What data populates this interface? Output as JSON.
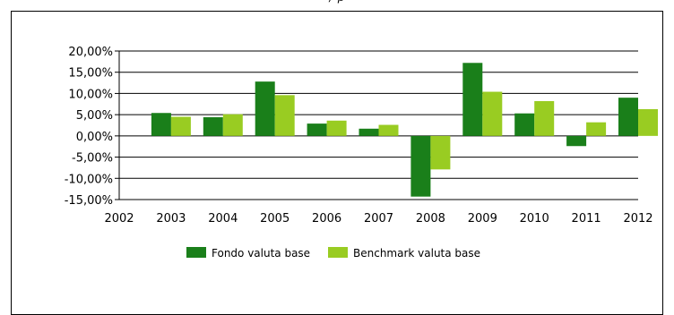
{
  "chart_data": {
    "type": "bar",
    "title": "",
    "xlabel": "",
    "ylabel": "",
    "categories": [
      "2002",
      "2003",
      "2004",
      "2005",
      "2006",
      "2007",
      "2008",
      "2009",
      "2010",
      "2011",
      "2012"
    ],
    "series": [
      {
        "name": "Fondo valuta base",
        "color": "#1a7f1a",
        "values": [
          null,
          5.4,
          4.4,
          12.8,
          2.9,
          1.7,
          -14.3,
          17.2,
          5.3,
          -2.4,
          9.0
        ]
      },
      {
        "name": "Benchmark valuta base",
        "color": "#99cc22",
        "values": [
          null,
          4.5,
          5.1,
          9.6,
          3.6,
          2.6,
          -7.9,
          10.4,
          8.2,
          3.2,
          6.3
        ]
      }
    ],
    "ylim": [
      -15,
      20
    ],
    "yticks": [
      20,
      15,
      10,
      5,
      0,
      -5,
      -10,
      -15
    ],
    "ytick_labels": [
      "20,00%",
      "15,00%",
      "10,00%",
      "5,00%",
      "0,00%",
      "-5,00%",
      "-10,00%",
      "-15,00%"
    ],
    "grid": true,
    "legend_position": "bottom-center"
  }
}
